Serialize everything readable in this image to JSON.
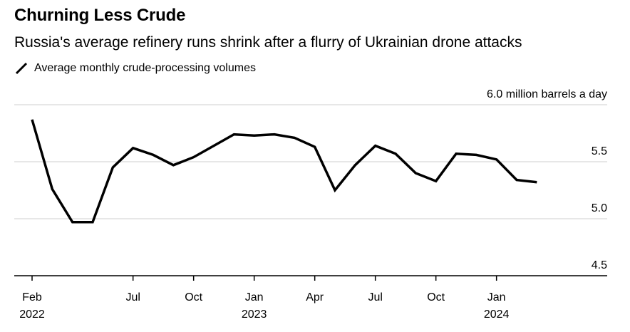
{
  "chart_data": {
    "type": "line",
    "title": "Churning Less Crude",
    "subtitle": "Russia's average refinery runs shrink after a flurry of Ukrainian drone attacks",
    "legend": [
      "Average monthly crude-processing volumes"
    ],
    "ylabel": "6.0 million barrels a day",
    "ylim": [
      4.5,
      6.0
    ],
    "yticks": [
      "6.0 million barrels a day",
      "5.5",
      "5.0",
      "4.5"
    ],
    "xlim_months": [
      0,
      27
    ],
    "xticks": [
      {
        "m": 0,
        "label": "Feb",
        "sublabel": "2022"
      },
      {
        "m": 5,
        "label": "Jul",
        "sublabel": ""
      },
      {
        "m": 8,
        "label": "Oct",
        "sublabel": ""
      },
      {
        "m": 11,
        "label": "Jan",
        "sublabel": "2023"
      },
      {
        "m": 14,
        "label": "Apr",
        "sublabel": ""
      },
      {
        "m": 17,
        "label": "Jul",
        "sublabel": ""
      },
      {
        "m": 20,
        "label": "Oct",
        "sublabel": ""
      },
      {
        "m": 23,
        "label": "Jan",
        "sublabel": "2024"
      }
    ],
    "series": [
      {
        "name": "Average monthly crude-processing volumes",
        "color": "#000000",
        "x": [
          0,
          1,
          2,
          3,
          4,
          5,
          6,
          7,
          8,
          9,
          10,
          11,
          12,
          13,
          14,
          15,
          16,
          17,
          18,
          19,
          20,
          21,
          22,
          23,
          24,
          25
        ],
        "values": [
          5.87,
          5.26,
          4.97,
          4.97,
          5.45,
          5.62,
          5.56,
          5.47,
          5.54,
          5.64,
          5.74,
          5.73,
          5.74,
          5.71,
          5.63,
          5.25,
          5.47,
          5.64,
          5.57,
          5.4,
          5.33,
          5.57,
          5.56,
          5.52,
          5.34,
          5.32
        ]
      }
    ]
  }
}
